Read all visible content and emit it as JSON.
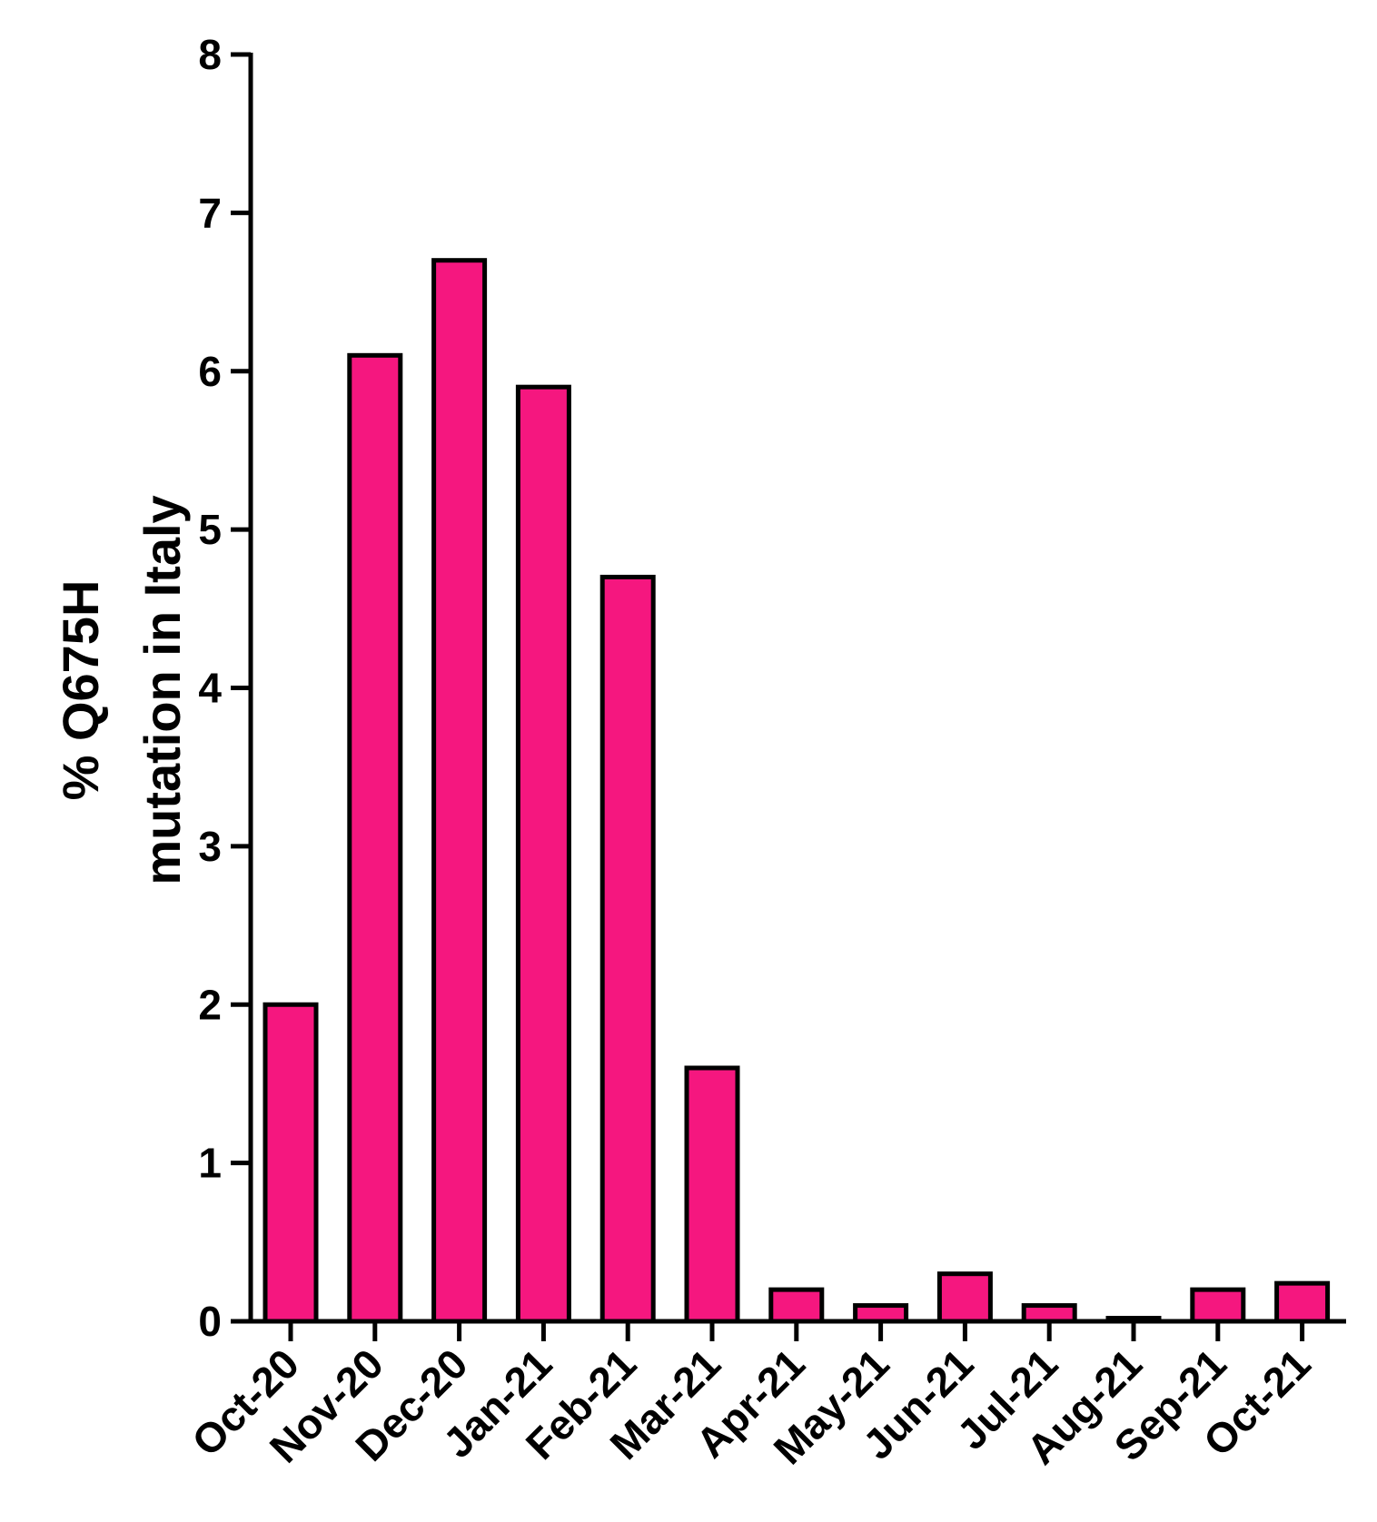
{
  "chart_data": {
    "type": "bar",
    "title": "",
    "xlabel": "",
    "ylabel_lines": [
      "% Q675H",
      "mutation in Italy"
    ],
    "categories": [
      "Oct-20",
      "Nov-20",
      "Dec-20",
      "Jan-21",
      "Feb-21",
      "Mar-21",
      "Apr-21",
      "May-21",
      "Jun-21",
      "Jul-21",
      "Aug-21",
      "Sep-21",
      "Oct-21"
    ],
    "values": [
      2.0,
      6.1,
      6.7,
      5.9,
      4.7,
      1.6,
      0.2,
      0.1,
      0.3,
      0.1,
      0.02,
      0.2,
      0.24
    ],
    "ylim": [
      0,
      8
    ],
    "yticks": [
      "0",
      "1",
      "2",
      "3",
      "4",
      "5",
      "6",
      "7",
      "8"
    ],
    "grid": false,
    "bar_color": "#F5177F",
    "edge_color": "#000000"
  }
}
